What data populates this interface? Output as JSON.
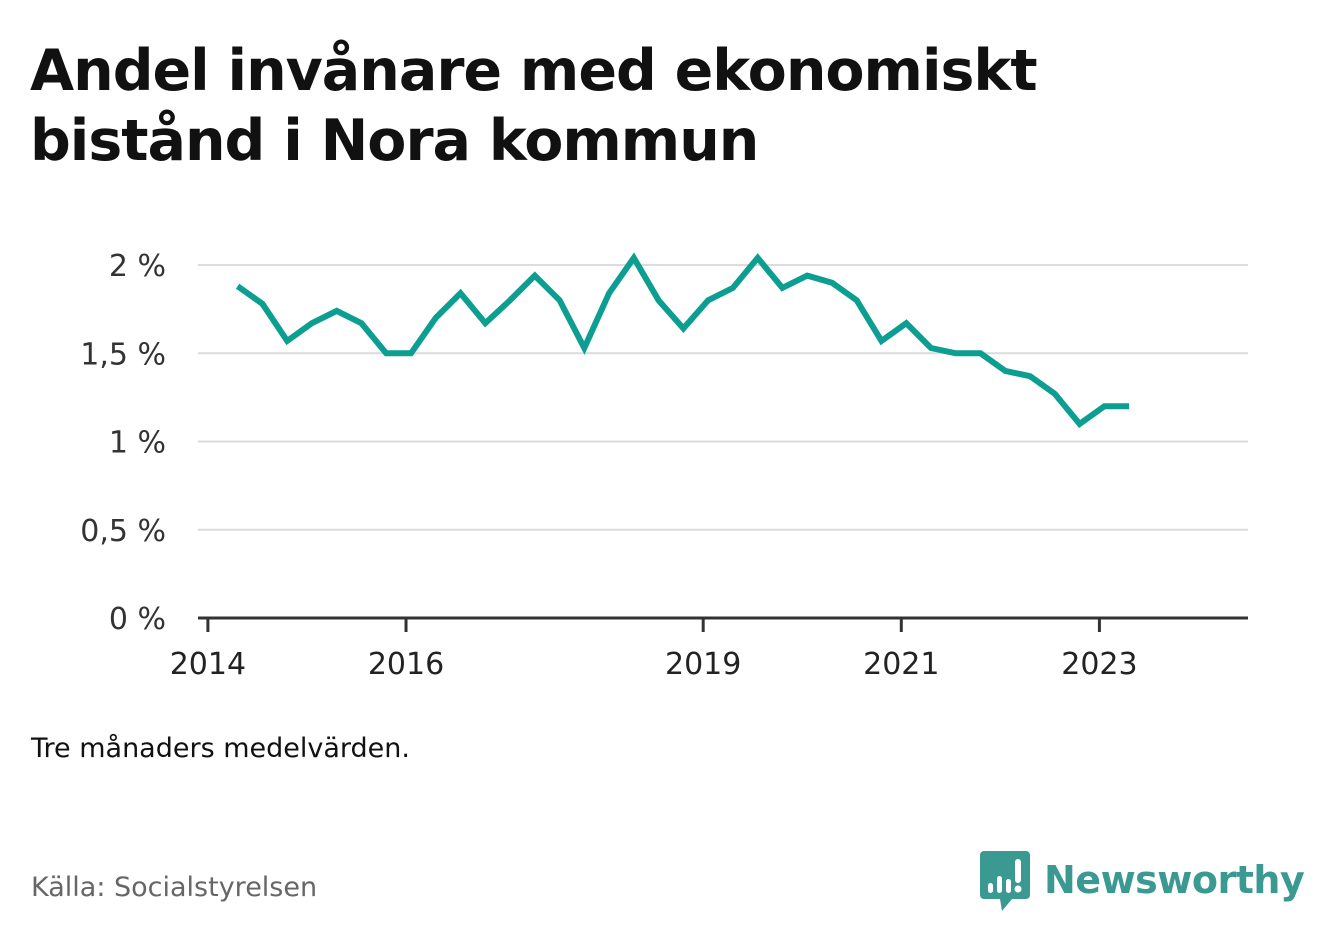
{
  "title": "Andel invånare med ekonomiskt bistånd i Nora kommun",
  "note": "Tre månaders medelvärden.",
  "source": "Källa: Socialstyrelsen",
  "brand": {
    "name": "Newsworthy",
    "icon": "newsworthy-logo-icon",
    "color": "#3a9a92"
  },
  "chart_data": {
    "type": "line",
    "title": "Andel invånare med ekonomiskt bistånd i Nora kommun",
    "xlabel": "",
    "ylabel": "",
    "ylim": [
      0,
      2
    ],
    "y_ticks": [
      {
        "value": 0,
        "label": "0 %"
      },
      {
        "value": 0.5,
        "label": "0,5 %"
      },
      {
        "value": 1,
        "label": "1 %"
      },
      {
        "value": 1.5,
        "label": "1,5 %"
      },
      {
        "value": 2,
        "label": "2 %"
      }
    ],
    "x_ticks": [
      {
        "value": 2014,
        "label": "2014"
      },
      {
        "value": 2016,
        "label": "2016"
      },
      {
        "value": 2019,
        "label": "2019"
      },
      {
        "value": 2021,
        "label": "2021"
      },
      {
        "value": 2023,
        "label": "2023"
      }
    ],
    "xlim": [
      2013.9,
      2024.5
    ],
    "grid": true,
    "line_color": "#0d9e92",
    "series": [
      {
        "name": "",
        "x": [
          2014.3,
          2014.55,
          2014.8,
          2015.05,
          2015.3,
          2015.55,
          2015.8,
          2016.05,
          2016.3,
          2016.55,
          2016.8,
          2017.05,
          2017.3,
          2017.55,
          2017.8,
          2018.05,
          2018.3,
          2018.55,
          2018.8,
          2019.05,
          2019.3,
          2019.55,
          2019.8,
          2020.05,
          2020.3,
          2020.55,
          2020.8,
          2021.05,
          2021.3,
          2021.55,
          2021.8,
          2022.05,
          2022.3,
          2022.55,
          2022.8,
          2023.05,
          2023.3
        ],
        "values": [
          1.88,
          1.78,
          1.57,
          1.67,
          1.74,
          1.67,
          1.5,
          1.5,
          1.7,
          1.84,
          1.67,
          1.8,
          1.94,
          1.8,
          1.53,
          1.84,
          2.04,
          1.8,
          1.64,
          1.8,
          1.87,
          2.04,
          1.87,
          1.94,
          1.9,
          1.8,
          1.57,
          1.67,
          1.53,
          1.5,
          1.5,
          1.4,
          1.37,
          1.27,
          1.1,
          1.2,
          1.2
        ]
      }
    ]
  }
}
